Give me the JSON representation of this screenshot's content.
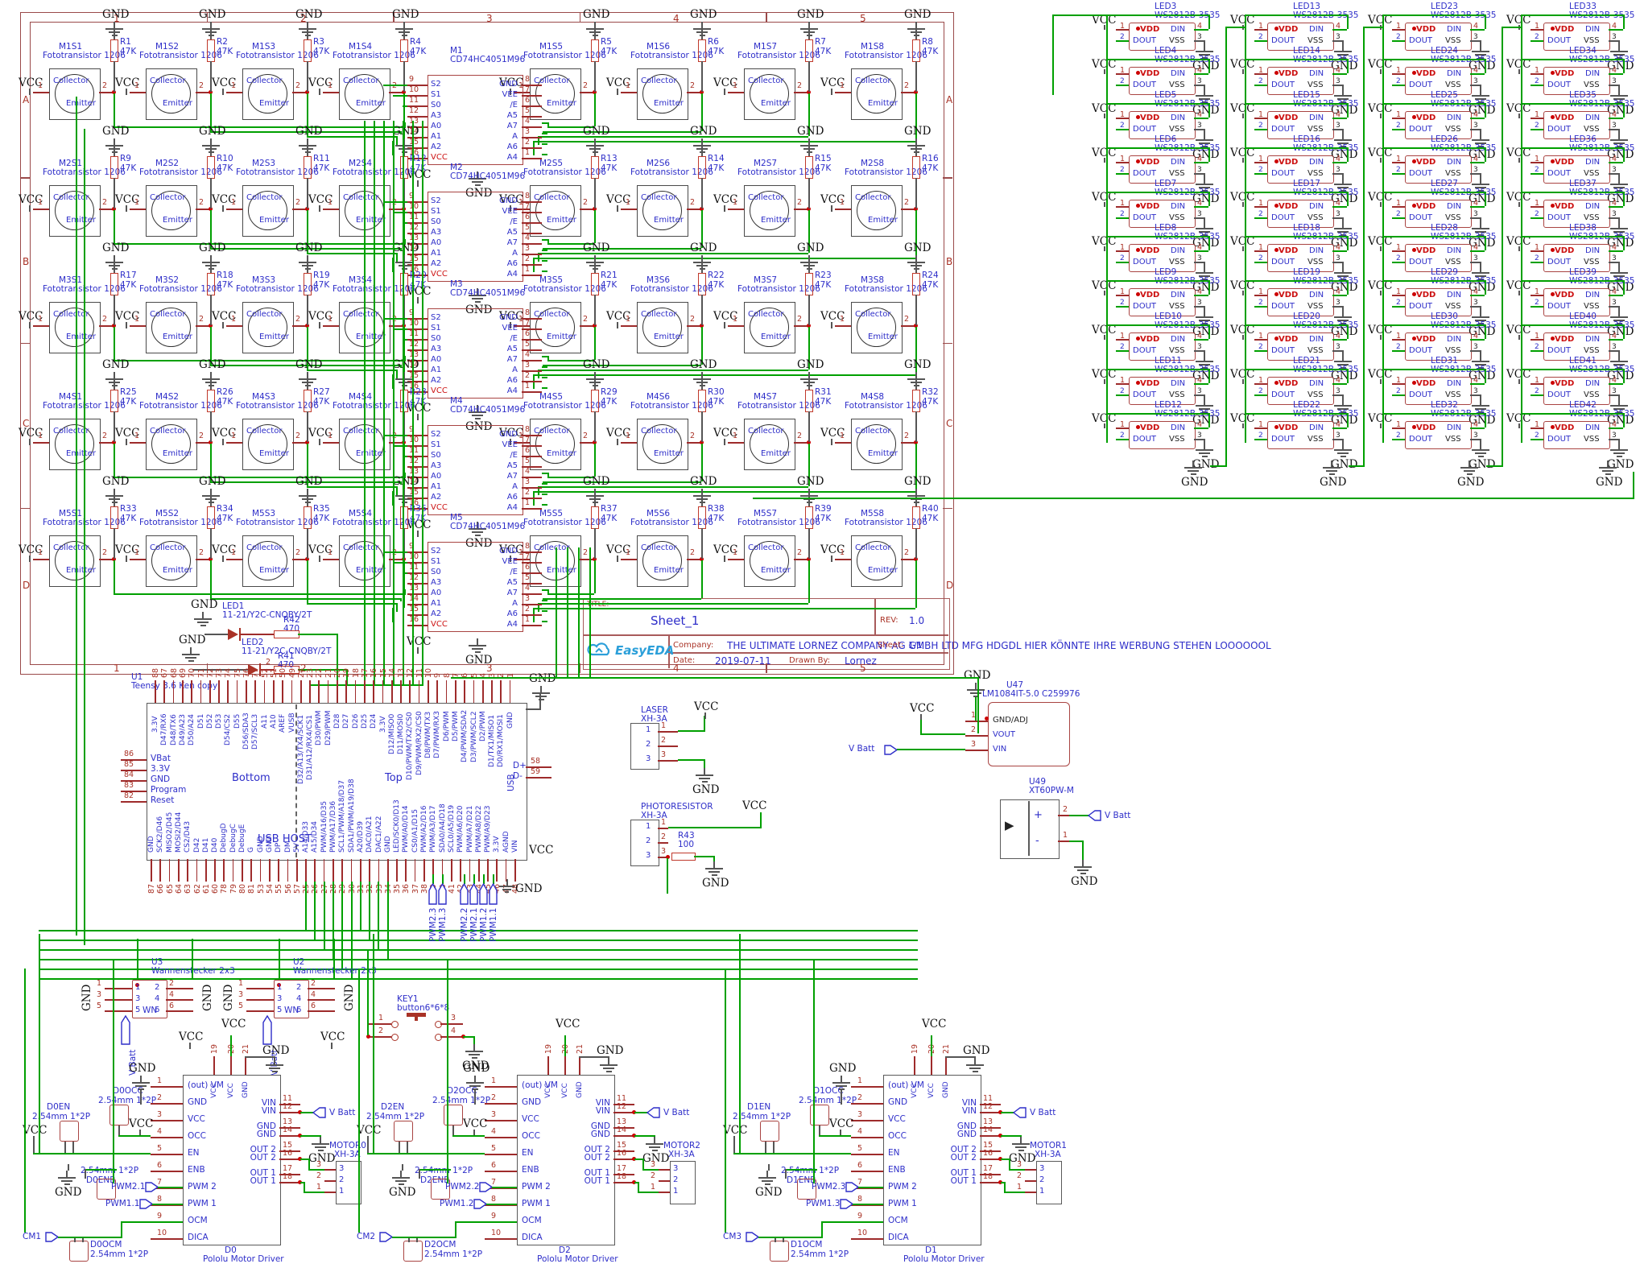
{
  "net_labels": {
    "vcc": "VCC",
    "gnd": "GND",
    "vbatt": "V Batt"
  },
  "frame": {
    "columns": [
      "1",
      "2",
      "3",
      "4",
      "5"
    ],
    "rows": [
      "A",
      "B",
      "C",
      "D"
    ]
  },
  "sensor_grid": {
    "part": "Fototransistor 1206",
    "value": "47K",
    "collector": "Collector",
    "emitter": "Emitter",
    "pin1": "1",
    "pin2": "2",
    "rows": [
      {
        "sensors": [
          "M1S1",
          "M1S2",
          "M1S3",
          "M1S4",
          "M1S5",
          "M1S6",
          "M1S7",
          "M1S8"
        ],
        "resistors": [
          "R1",
          "R2",
          "R3",
          "R4",
          "R5",
          "R6",
          "R7",
          "R8"
        ],
        "mux": {
          "ref": "M1",
          "part": "CD74HC4051M96"
        }
      },
      {
        "sensors": [
          "M2S1",
          "M2S2",
          "M2S3",
          "M2S4",
          "M2S5",
          "M2S6",
          "M2S7",
          "M2S8"
        ],
        "resistors": [
          "R9",
          "R10",
          "R11",
          "R12",
          "R13",
          "R14",
          "R15",
          "R16"
        ],
        "mux": {
          "ref": "M2",
          "part": "CD74HC4051M96"
        }
      },
      {
        "sensors": [
          "M3S1",
          "M3S2",
          "M3S3",
          "M3S4",
          "M3S5",
          "M3S6",
          "M3S7",
          "M3S8"
        ],
        "resistors": [
          "R17",
          "R18",
          "R19",
          "R20",
          "R21",
          "R22",
          "R23",
          "R24"
        ],
        "mux": {
          "ref": "M3",
          "part": "CD74HC4051M96"
        }
      },
      {
        "sensors": [
          "M4S1",
          "M4S2",
          "M4S3",
          "M4S4",
          "M4S5",
          "M4S6",
          "M4S7",
          "M4S8"
        ],
        "resistors": [
          "R25",
          "R26",
          "R27",
          "R28",
          "R29",
          "R30",
          "R31",
          "R32"
        ],
        "mux": {
          "ref": "M4",
          "part": "CD74HC4051M96"
        }
      },
      {
        "sensors": [
          "M5S1",
          "M5S2",
          "M5S3",
          "M5S4",
          "M5S5",
          "M5S6",
          "M5S7",
          "M5S8"
        ],
        "resistors": [
          "R33",
          "R34",
          "R35",
          "R36",
          "R37",
          "R38",
          "R39",
          "R40"
        ],
        "mux": {
          "ref": "M5",
          "part": "CD74HC4051M96"
        }
      }
    ]
  },
  "mux_pins": {
    "left": [
      {
        "n": "9",
        "l": "S2"
      },
      {
        "n": "10",
        "l": "S1"
      },
      {
        "n": "11",
        "l": "S0"
      },
      {
        "n": "12",
        "l": "A3"
      },
      {
        "n": "13",
        "l": "A0"
      },
      {
        "n": "14",
        "l": "A1"
      },
      {
        "n": "15",
        "l": "A2"
      },
      {
        "n": "16",
        "l": "VCC"
      }
    ],
    "right": [
      {
        "n": "8",
        "l": "GND"
      },
      {
        "n": "7",
        "l": "VEE"
      },
      {
        "n": "6",
        "l": "/E"
      },
      {
        "n": "5",
        "l": "A5"
      },
      {
        "n": "4",
        "l": "A7"
      },
      {
        "n": "3",
        "l": "A"
      },
      {
        "n": "2",
        "l": "A6"
      },
      {
        "n": "1",
        "l": "A4"
      }
    ]
  },
  "led_matrix": {
    "part": "WS2812B-3535",
    "pins": {
      "vdd": "VDD",
      "dout": "DOUT",
      "din": "DIN",
      "vss": "VSS",
      "n1": "1",
      "n2": "2",
      "n3": "3",
      "n4": "4"
    },
    "columns": [
      [
        "LED3",
        "LED4",
        "LED5",
        "LED6",
        "LED7",
        "LED8",
        "LED9",
        "LED10",
        "LED11",
        "LED12"
      ],
      [
        "LED13",
        "LED14",
        "LED15",
        "LED16",
        "LED17",
        "LED18",
        "LED19",
        "LED20",
        "LED21",
        "LED22"
      ],
      [
        "LED23",
        "LED24",
        "LED25",
        "LED26",
        "LED27",
        "LED28",
        "LED29",
        "LED30",
        "LED31",
        "LED32"
      ],
      [
        "LED33",
        "LED34",
        "LED35",
        "LED36",
        "LED37",
        "LED38",
        "LED39",
        "LED40",
        "LED41",
        "LED42"
      ]
    ]
  },
  "indicator_leds": [
    {
      "ref": "LED1",
      "part": "11-21/Y2C-CNQBY/2T",
      "resistor": "R42",
      "value": "470"
    },
    {
      "ref": "LED2",
      "part": "11-21/Y2C-CNQBY/2T",
      "resistor": "R41",
      "value": "470",
      "pin": "2"
    }
  ],
  "title_block": {
    "title_label": "TITLE:",
    "title": "Sheet_1",
    "rev_label": "REV:",
    "rev": "1.0",
    "company_label": "Company:",
    "company": "THE ULTIMATE LORNEZ COMPANY AG GMBH LTD MFG HDGDL HIER KÖNNTE IHRE WERBUNG STEHEN LOOOOOOL",
    "sheet_label": "Sheet:",
    "sheet": "1/1",
    "date_label": "Date:",
    "date": "2019-07-11",
    "drawn_label": "Drawn By:",
    "drawn_by": "Lornez",
    "logo": "EasyEDA"
  },
  "teensy": {
    "ref": "U1",
    "part": "Teensy 3.6 Ken copy",
    "bottom_label": "Bottom",
    "top_label": "Top",
    "usb_host_label": "USB HOST",
    "usb_label": "USB",
    "left_pins": [
      {
        "n": "86",
        "l": "VBat"
      },
      {
        "n": "85",
        "l": "3.3V"
      },
      {
        "n": "84",
        "l": "GND"
      },
      {
        "n": "83",
        "l": "Program"
      },
      {
        "n": "82",
        "l": "Reset"
      }
    ],
    "right_pins": [
      {
        "n": "58",
        "l": "D+"
      },
      {
        "n": "59",
        "l": "D-"
      }
    ],
    "top_pins": [
      {
        "n": "88",
        "l": "3.3V"
      },
      {
        "n": "67",
        "l": "D47/RX6"
      },
      {
        "n": "68",
        "l": "D48/TX6"
      },
      {
        "n": "69",
        "l": "D49/A23"
      },
      {
        "n": "70",
        "l": "D50/A24"
      },
      {
        "n": "71",
        "l": "D51"
      },
      {
        "n": "72",
        "l": "D52"
      },
      {
        "n": "73",
        "l": "D53"
      },
      {
        "n": "74",
        "l": "D54/CS2"
      },
      {
        "n": "75",
        "l": "D55"
      },
      {
        "n": "76",
        "l": "D56/SDA3"
      },
      {
        "n": "77",
        "l": "D57/SCL3"
      },
      {
        "n": "52",
        "l": "A11"
      },
      {
        "n": "51",
        "l": "A10"
      },
      {
        "n": "50",
        "l": "AREF"
      },
      {
        "n": "49",
        "l": "VUSB"
      },
      {
        "n": "24",
        "l": "D32/A13/TX4/SCK1"
      },
      {
        "n": "23",
        "l": "D31/A12/RX4/CS1"
      },
      {
        "n": "22",
        "l": "D30/PWM"
      },
      {
        "n": "21",
        "l": "D29/PWM"
      },
      {
        "n": "20",
        "l": "D28"
      },
      {
        "n": "19",
        "l": "D27"
      },
      {
        "n": "18",
        "l": "D26"
      },
      {
        "n": "17",
        "l": "D25"
      },
      {
        "n": "16",
        "l": "D24"
      },
      {
        "n": "15",
        "l": "3.3V"
      },
      {
        "n": "14",
        "l": "D12/MISO0"
      },
      {
        "n": "13",
        "l": "D11/MOSI0"
      },
      {
        "n": "12",
        "l": "D10/PWM/TX2/CS0"
      },
      {
        "n": "11",
        "l": "D9/PWM/RX2/CS0"
      },
      {
        "n": "10",
        "l": "D8/PWM/TX3"
      },
      {
        "n": "9",
        "l": "D7/PWM/RX3"
      },
      {
        "n": "8",
        "l": "D6/PWM"
      },
      {
        "n": "7",
        "l": "D5/PWM"
      },
      {
        "n": "6",
        "l": "D4/PWM/SDA2"
      },
      {
        "n": "5",
        "l": "D3/PWM/SCL2"
      },
      {
        "n": "4",
        "l": "D2/PWM"
      },
      {
        "n": "3",
        "l": "D1/TX1/MISO1"
      },
      {
        "n": "2",
        "l": "D0/RX1/MOSI1"
      },
      {
        "n": "1",
        "l": "GND"
      }
    ],
    "bottom_pins": [
      {
        "n": "87",
        "l": "GND"
      },
      {
        "n": "66",
        "l": "SCK2/D46"
      },
      {
        "n": "65",
        "l": "MISO2/D45"
      },
      {
        "n": "64",
        "l": "MOSI2/D44"
      },
      {
        "n": "63",
        "l": "CS2/D43"
      },
      {
        "n": "62",
        "l": "D42"
      },
      {
        "n": "61",
        "l": "D41"
      },
      {
        "n": "60",
        "l": "D40"
      },
      {
        "n": "78",
        "l": "DebugD"
      },
      {
        "n": "79",
        "l": "DebugC"
      },
      {
        "n": "80",
        "l": "DebugE"
      },
      {
        "n": "81",
        "l": "G"
      },
      {
        "n": "53",
        "l": "GND"
      },
      {
        "n": "54",
        "l": "GND"
      },
      {
        "n": "55",
        "l": "DP"
      },
      {
        "n": "56",
        "l": "DM"
      },
      {
        "n": "57",
        "l": "5V"
      },
      {
        "n": "25",
        "l": "A14/D33"
      },
      {
        "n": "26",
        "l": "A15/D34"
      },
      {
        "n": "27",
        "l": "PWM/A16/D35"
      },
      {
        "n": "28",
        "l": "PWM/A17/D36"
      },
      {
        "n": "29",
        "l": "SCL1/PWM/A18/D37"
      },
      {
        "n": "30",
        "l": "SDA1/PWM/A19/D38"
      },
      {
        "n": "31",
        "l": "A20/D39"
      },
      {
        "n": "32",
        "l": "DAC0/A21"
      },
      {
        "n": "33",
        "l": "DAC1/A22"
      },
      {
        "n": "34",
        "l": "GND"
      },
      {
        "n": "35",
        "l": "LED/SCK0/D13"
      },
      {
        "n": "36",
        "l": "PWM/A0/D14"
      },
      {
        "n": "37",
        "l": "CS0/A1/D15"
      },
      {
        "n": "38",
        "l": "PWM/A2/D16"
      },
      {
        "n": "39",
        "l": "PWM/A3/D17"
      },
      {
        "n": "40",
        "l": "SDA0/A4/D18"
      },
      {
        "n": "41",
        "l": "SCL0/A5/D19"
      },
      {
        "n": "42",
        "l": "PWM/A6/D20"
      },
      {
        "n": "43",
        "l": "PWM/A7/D21"
      },
      {
        "n": "44",
        "l": "PWM/A8/D22"
      },
      {
        "n": "45",
        "l": "PWM/A9/D23"
      },
      {
        "n": "46",
        "l": "3.3V"
      },
      {
        "n": "47",
        "l": "AGND"
      },
      {
        "n": "48",
        "l": "VIN"
      }
    ]
  },
  "aux": {
    "laser": {
      "ref": "LASER",
      "part": "XH-3A",
      "pins": [
        "1",
        "2",
        "3"
      ]
    },
    "photoresistor": {
      "ref": "PHOTORESISTOR",
      "part": "XH-3A",
      "pins": [
        "1",
        "2",
        "3"
      ],
      "resistor": "R43",
      "value": "100"
    },
    "u47": {
      "ref": "U47",
      "part": "LM1084IT-5.0 C259976",
      "pins": [
        {
          "n": "1",
          "l": "GND/ADJ"
        },
        {
          "n": "2",
          "l": "VOUT"
        },
        {
          "n": "3",
          "l": "VIN"
        }
      ]
    },
    "u49": {
      "ref": "U49",
      "part": "XT60PW-M",
      "plus": "+",
      "minus": "-",
      "pin_plus": "2",
      "pin_minus": "1"
    }
  },
  "headers": [
    {
      "ref": "U3",
      "part": "Wannenstecker 2x3",
      "wn": "WN",
      "left_pins": [
        "1",
        "3",
        "5"
      ],
      "right_pins": [
        "2",
        "4",
        "6"
      ]
    },
    {
      "ref": "U2",
      "part": "Wannenstecker 2x3",
      "wn": "WN",
      "left_pins": [
        "1",
        "3",
        "5"
      ],
      "right_pins": [
        "2",
        "4",
        "6"
      ]
    }
  ],
  "key": {
    "ref": "KEY1",
    "part": "button6*6*8",
    "pins": [
      "1",
      "2",
      "3",
      "4"
    ]
  },
  "pwm_flags": [
    "PWM2.3",
    "PWM1.3",
    "PWM2.2",
    "PWM2.1",
    "PWM1.2",
    "PWM1.1"
  ],
  "drivers": {
    "part": "Pololu Motor Driver",
    "conn_part": "2.54mm 1*2P",
    "motor_part": "XH-3A",
    "left_pins": [
      {
        "n": "1",
        "l": "(out) VM"
      },
      {
        "n": "2",
        "l": "GND"
      },
      {
        "n": "3",
        "l": "VCC"
      },
      {
        "n": "4",
        "l": "OCC"
      },
      {
        "n": "5",
        "l": "EN"
      },
      {
        "n": "6",
        "l": "ENB"
      },
      {
        "n": "7",
        "l": "PWM 2"
      },
      {
        "n": "8",
        "l": "PWM 1"
      },
      {
        "n": "9",
        "l": "OCM"
      },
      {
        "n": "10",
        "l": "DICA"
      }
    ],
    "top_pins": [
      {
        "n": "19",
        "l": "VCC"
      },
      {
        "n": "20",
        "l": "VCC"
      },
      {
        "n": "21",
        "l": "GND"
      }
    ],
    "right_pins": [
      {
        "n": "11",
        "l": "VIN"
      },
      {
        "n": "12",
        "l": "VIN"
      },
      {
        "n": "13",
        "l": "GND"
      },
      {
        "n": "14",
        "l": "GND"
      },
      {
        "n": "15",
        "l": "OUT 2"
      },
      {
        "n": "16",
        "l": "OUT 2"
      },
      {
        "n": "17",
        "l": "OUT 1"
      },
      {
        "n": "18",
        "l": "OUT 1"
      }
    ],
    "motor_pins": [
      "3",
      "2",
      "1"
    ],
    "units": [
      {
        "ref": "D0",
        "motor_ref": "MOTOR0",
        "conn_en": "D0EN",
        "conn_occ": "D0OCC",
        "conn_enb": "D0ENB",
        "conn_ocm": "D0OCM",
        "flag_pwm2": "PWM2.1",
        "flag_pwm1": "PWM1.1",
        "flag_cm": "CM1"
      },
      {
        "ref": "D2",
        "motor_ref": "MOTOR2",
        "conn_en": "D2EN",
        "conn_occ": "D2OCC",
        "conn_enb": "D2ENB",
        "conn_ocm": "D2OCM",
        "flag_pwm2": "PWM2.2",
        "flag_pwm1": "PWM1.2",
        "flag_cm": "CM2"
      },
      {
        "ref": "D1",
        "motor_ref": "MOTOR1",
        "conn_en": "D1EN",
        "conn_occ": "D1OCC",
        "conn_enb": "D1ENB",
        "conn_ocm": "D1OCM",
        "flag_pwm2": "PWM2.3",
        "flag_pwm1": "PWM1.3",
        "flag_cm": "CM3"
      }
    ]
  }
}
